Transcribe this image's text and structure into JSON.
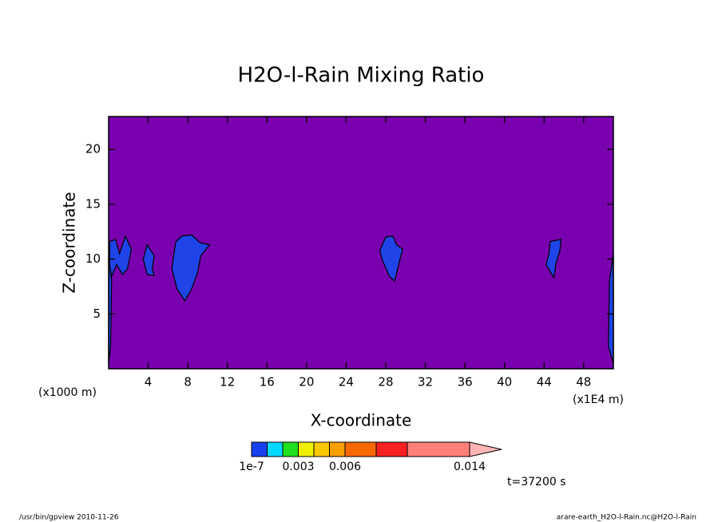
{
  "chart_data": {
    "type": "contour",
    "title": "H2O-l-Rain Mixing Ratio",
    "x_label": "X-coordinate",
    "y_label": "Z-coordinate",
    "x_unit_left": "(x1000 m)",
    "x_unit_right": "(x1E4 m)",
    "xlim": [
      0,
      51
    ],
    "ylim": [
      0,
      23
    ],
    "xticks": [
      4,
      8,
      12,
      16,
      20,
      24,
      28,
      32,
      36,
      40,
      44,
      48
    ],
    "yticks": [
      5,
      10,
      15,
      20
    ],
    "background_color": "#7800ae",
    "contours": [
      {
        "color": "#1f44e8",
        "regions": [
          {
            "x": [
              0.1,
              0.7,
              1.1,
              1.7,
              2.3,
              1.9,
              1.4,
              0.8,
              0.3,
              0.1
            ],
            "y": [
              11.6,
              11.8,
              10.5,
              12.1,
              10.9,
              9.1,
              8.6,
              9.5,
              8.4,
              9.5
            ]
          },
          {
            "x": [
              3.9,
              4.6,
              4.4,
              4.6,
              3.9,
              3.5
            ],
            "y": [
              11.3,
              10.3,
              9.1,
              8.5,
              8.6,
              10.0
            ]
          },
          {
            "x": [
              6.8,
              7.4,
              8.4,
              9.2,
              10.2,
              9.3,
              9.0,
              8.4,
              7.7,
              6.9,
              6.4,
              6.6
            ],
            "y": [
              11.6,
              12.1,
              12.2,
              11.5,
              11.3,
              10.3,
              8.8,
              7.3,
              6.2,
              7.3,
              9.1,
              10.5
            ]
          },
          {
            "x": [
              28.0,
              28.7,
              29.1,
              29.7,
              29.3,
              28.9,
              28.4,
              27.7,
              27.4
            ],
            "y": [
              12.0,
              12.1,
              11.3,
              10.9,
              9.5,
              8.0,
              8.4,
              9.8,
              10.8
            ]
          },
          {
            "x": [
              44.6,
              45.7,
              45.6,
              45.2,
              45.0,
              44.2,
              44.5
            ],
            "y": [
              11.6,
              11.8,
              10.8,
              9.6,
              8.3,
              9.5,
              10.5
            ]
          },
          {
            "x": [
              0,
              0.3,
              0.2,
              0
            ],
            "y": [
              10.2,
              8,
              2,
              0.5
            ]
          },
          {
            "x": [
              51,
              50.6,
              50.5,
              51
            ],
            "y": [
              10.5,
              8,
              2,
              0.5
            ]
          }
        ]
      }
    ],
    "colorbar": {
      "levels": [
        1e-07,
        0.001,
        0.002,
        0.003,
        0.004,
        0.005,
        0.006,
        0.008,
        0.01,
        0.014
      ],
      "colors": [
        "#1840f0",
        "#00d8ff",
        "#20e020",
        "#f0f000",
        "#f8c800",
        "#f8a000",
        "#f86800",
        "#f82020",
        "#ff8078",
        "#ffb4b4"
      ],
      "ticks": [
        1e-07,
        0.003,
        0.006,
        0.014
      ]
    },
    "time_label": "t=37200 s"
  },
  "footer": {
    "left": "/usr/bin/gpview  2010-11-26",
    "right": "arare-earth_H2O-l-Rain.nc@H2O-l-Rain"
  }
}
